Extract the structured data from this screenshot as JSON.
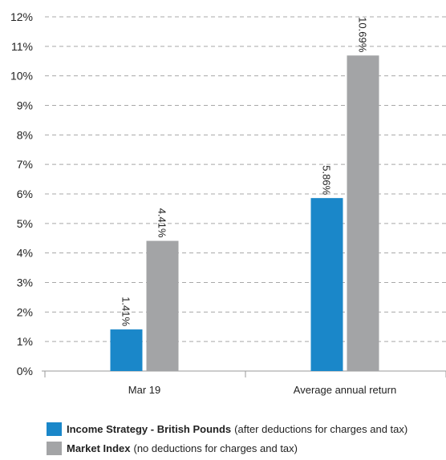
{
  "chart_data": {
    "type": "bar",
    "categories": [
      "Mar 19",
      "Average annual return"
    ],
    "series": [
      {
        "name": "Income Strategy - British Pounds",
        "values": [
          1.41,
          5.86
        ],
        "labels": [
          "1.41%",
          "5.86%"
        ],
        "color": "#1a87c9"
      },
      {
        "name": "Market Index",
        "values": [
          4.41,
          10.69
        ],
        "labels": [
          "4.41%",
          "10.69%"
        ],
        "color": "#a3a4a6"
      }
    ],
    "yticks": [
      "0%",
      "1%",
      "2%",
      "3%",
      "4%",
      "5%",
      "6%",
      "7%",
      "8%",
      "9%",
      "10%",
      "11%",
      "12%"
    ],
    "ylim": [
      0,
      12
    ],
    "grid": "dashed horizontal",
    "legend_position": "bottom-left"
  },
  "legend": [
    {
      "bold": "Income Strategy - British Pounds",
      "rest": "(after deductions for charges and tax)",
      "color": "#1a87c9"
    },
    {
      "bold": "Market Index",
      "rest": "(no deductions for charges and tax)",
      "color": "#a3a4a6"
    }
  ]
}
